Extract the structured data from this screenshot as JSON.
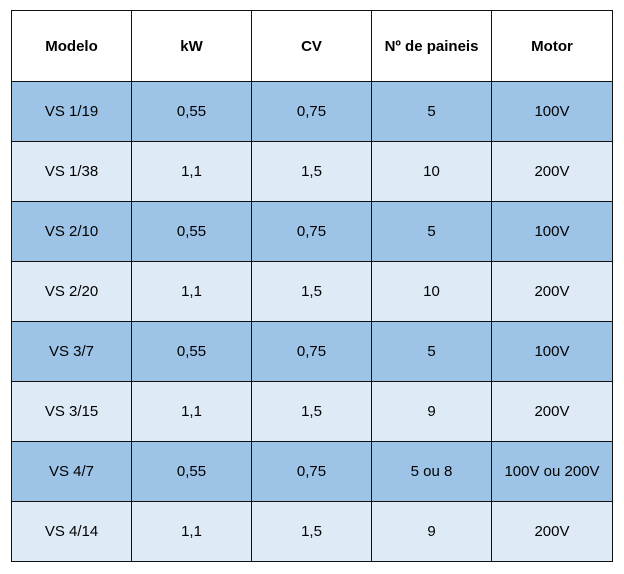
{
  "table": {
    "headers": [
      "Modelo",
      "kW",
      "CV",
      "Nº de paineis",
      "Motor"
    ],
    "rows": [
      [
        "VS 1/19",
        "0,55",
        "0,75",
        "5",
        "100V"
      ],
      [
        "VS 1/38",
        "1,1",
        "1,5",
        "10",
        "200V"
      ],
      [
        "VS 2/10",
        "0,55",
        "0,75",
        "5",
        "100V"
      ],
      [
        "VS 2/20",
        "1,1",
        "1,5",
        "10",
        "200V"
      ],
      [
        "VS 3/7",
        "0,55",
        "0,75",
        "5",
        "100V"
      ],
      [
        "VS 3/15",
        "1,1",
        "1,5",
        "9",
        "200V"
      ],
      [
        "VS 4/7",
        "0,55",
        "0,75",
        "5 ou 8",
        "100V ou 200V"
      ],
      [
        "VS 4/14",
        "1,1",
        "1,5",
        "9",
        "200V"
      ]
    ]
  },
  "colors": {
    "row_dark": "#9dc3e6",
    "row_light": "#deebf7",
    "header_bg": "#ffffff",
    "border": "#111111"
  }
}
